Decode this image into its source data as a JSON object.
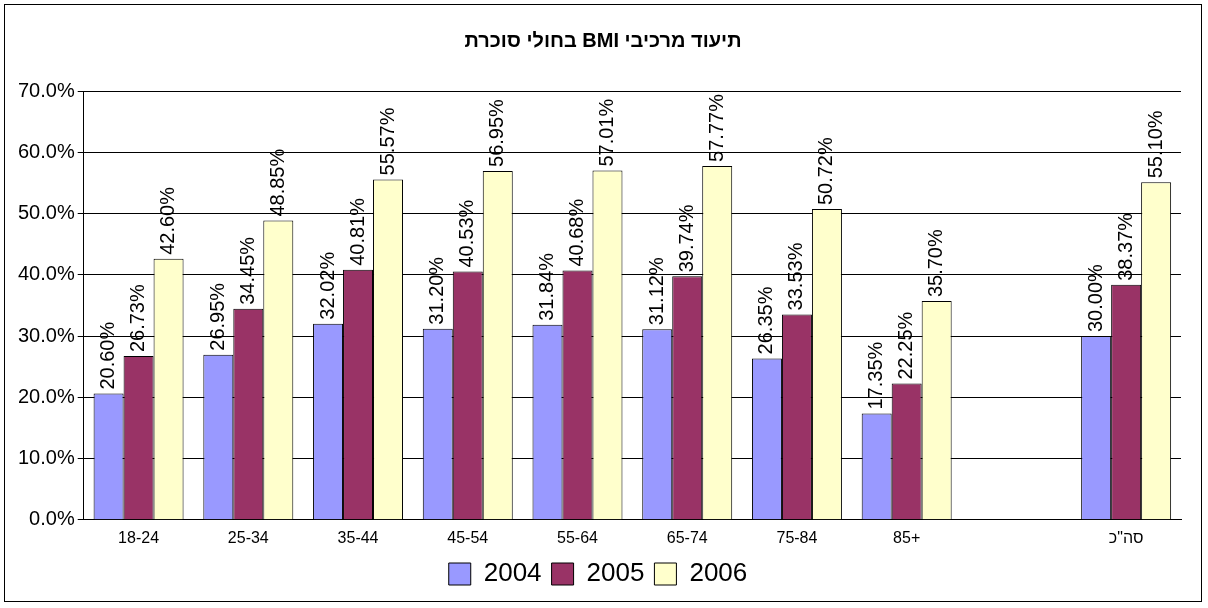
{
  "chart_data": {
    "type": "bar",
    "title": "תיעוד מרכיבי BMI בחולי סוכרת",
    "categories": [
      "18-24",
      "25-34",
      "35-44",
      "45-54",
      "55-64",
      "65-74",
      "75-84",
      "85+",
      null,
      "סה\"כ"
    ],
    "series": [
      {
        "name": "2004",
        "color": "#9999ff",
        "values": [
          20.6,
          26.95,
          32.02,
          31.2,
          31.84,
          31.12,
          26.35,
          17.35,
          null,
          30.0
        ],
        "value_labels": [
          "20.60%",
          "26.95%",
          "32.02%",
          "31.20%",
          "31.84%",
          "31.12%",
          "26.35%",
          "17.35%",
          null,
          "30.00%"
        ]
      },
      {
        "name": "2005",
        "color": "#993366",
        "values": [
          26.73,
          34.45,
          40.81,
          40.53,
          40.68,
          39.74,
          33.53,
          22.25,
          null,
          38.37
        ],
        "value_labels": [
          "26.73%",
          "34.45%",
          "40.81%",
          "40.53%",
          "40.68%",
          "39.74%",
          "33.53%",
          "22.25%",
          null,
          "38.37%"
        ]
      },
      {
        "name": "2006",
        "color": "#ffffcc",
        "values": [
          42.6,
          48.85,
          55.57,
          56.95,
          57.01,
          57.77,
          50.72,
          35.7,
          null,
          55.1
        ],
        "value_labels": [
          "42.60%",
          "48.85%",
          "55.57%",
          "56.95%",
          "57.01%",
          "57.77%",
          "50.72%",
          "35.70%",
          null,
          "55.10%"
        ]
      }
    ],
    "ylim": [
      0,
      70
    ],
    "yticks": [
      {
        "value": 0,
        "label": "0.0%"
      },
      {
        "value": 10,
        "label": "10.0%"
      },
      {
        "value": 20,
        "label": "20.0%"
      },
      {
        "value": 30,
        "label": "30.0%"
      },
      {
        "value": 40,
        "label": "40.0%"
      },
      {
        "value": 50,
        "label": "50.0%"
      },
      {
        "value": 60,
        "label": "60.0%"
      },
      {
        "value": 70,
        "label": "70.0%"
      }
    ],
    "grid": "y",
    "legend": "bottom"
  }
}
